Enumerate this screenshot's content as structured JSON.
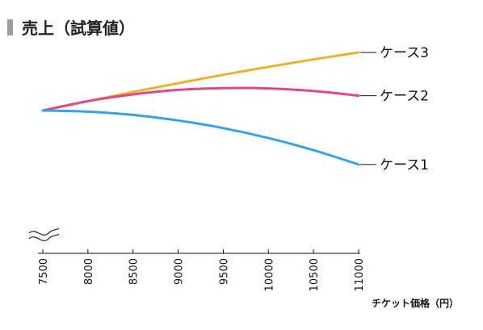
{
  "chart_data": {
    "type": "line",
    "title": "売上（試算値）",
    "xlabel": "チケット価格（円）",
    "ylabel": "",
    "x_ticks": [
      7500,
      8000,
      8500,
      9000,
      9500,
      10000,
      10500,
      11000
    ],
    "xlim": [
      7500,
      11000
    ],
    "axis_break": true,
    "grid": false,
    "series": [
      {
        "name": "ケース3",
        "color": "#e8b330",
        "x": [
          7500,
          8000,
          8500,
          9000,
          9500,
          10000,
          10500,
          11000
        ],
        "y": [
          100,
          107.3,
          114.4,
          121.2,
          127.7,
          133.8,
          139.6,
          145.0
        ]
      },
      {
        "name": "ケース2",
        "color": "#e0468c",
        "x": [
          7500,
          8000,
          8500,
          9000,
          9500,
          10000,
          10500,
          11000
        ],
        "y": [
          100,
          107.3,
          112.5,
          116.0,
          117.4,
          117.1,
          115.1,
          111.5
        ]
      },
      {
        "name": "ケース1",
        "color": "#36a3dc",
        "x": [
          7500,
          8000,
          8500,
          9000,
          9500,
          10000,
          10500,
          11000
        ],
        "y": [
          100,
          99.1,
          96.6,
          92.3,
          86.4,
          78.7,
          69.3,
          58.2
        ]
      }
    ]
  }
}
